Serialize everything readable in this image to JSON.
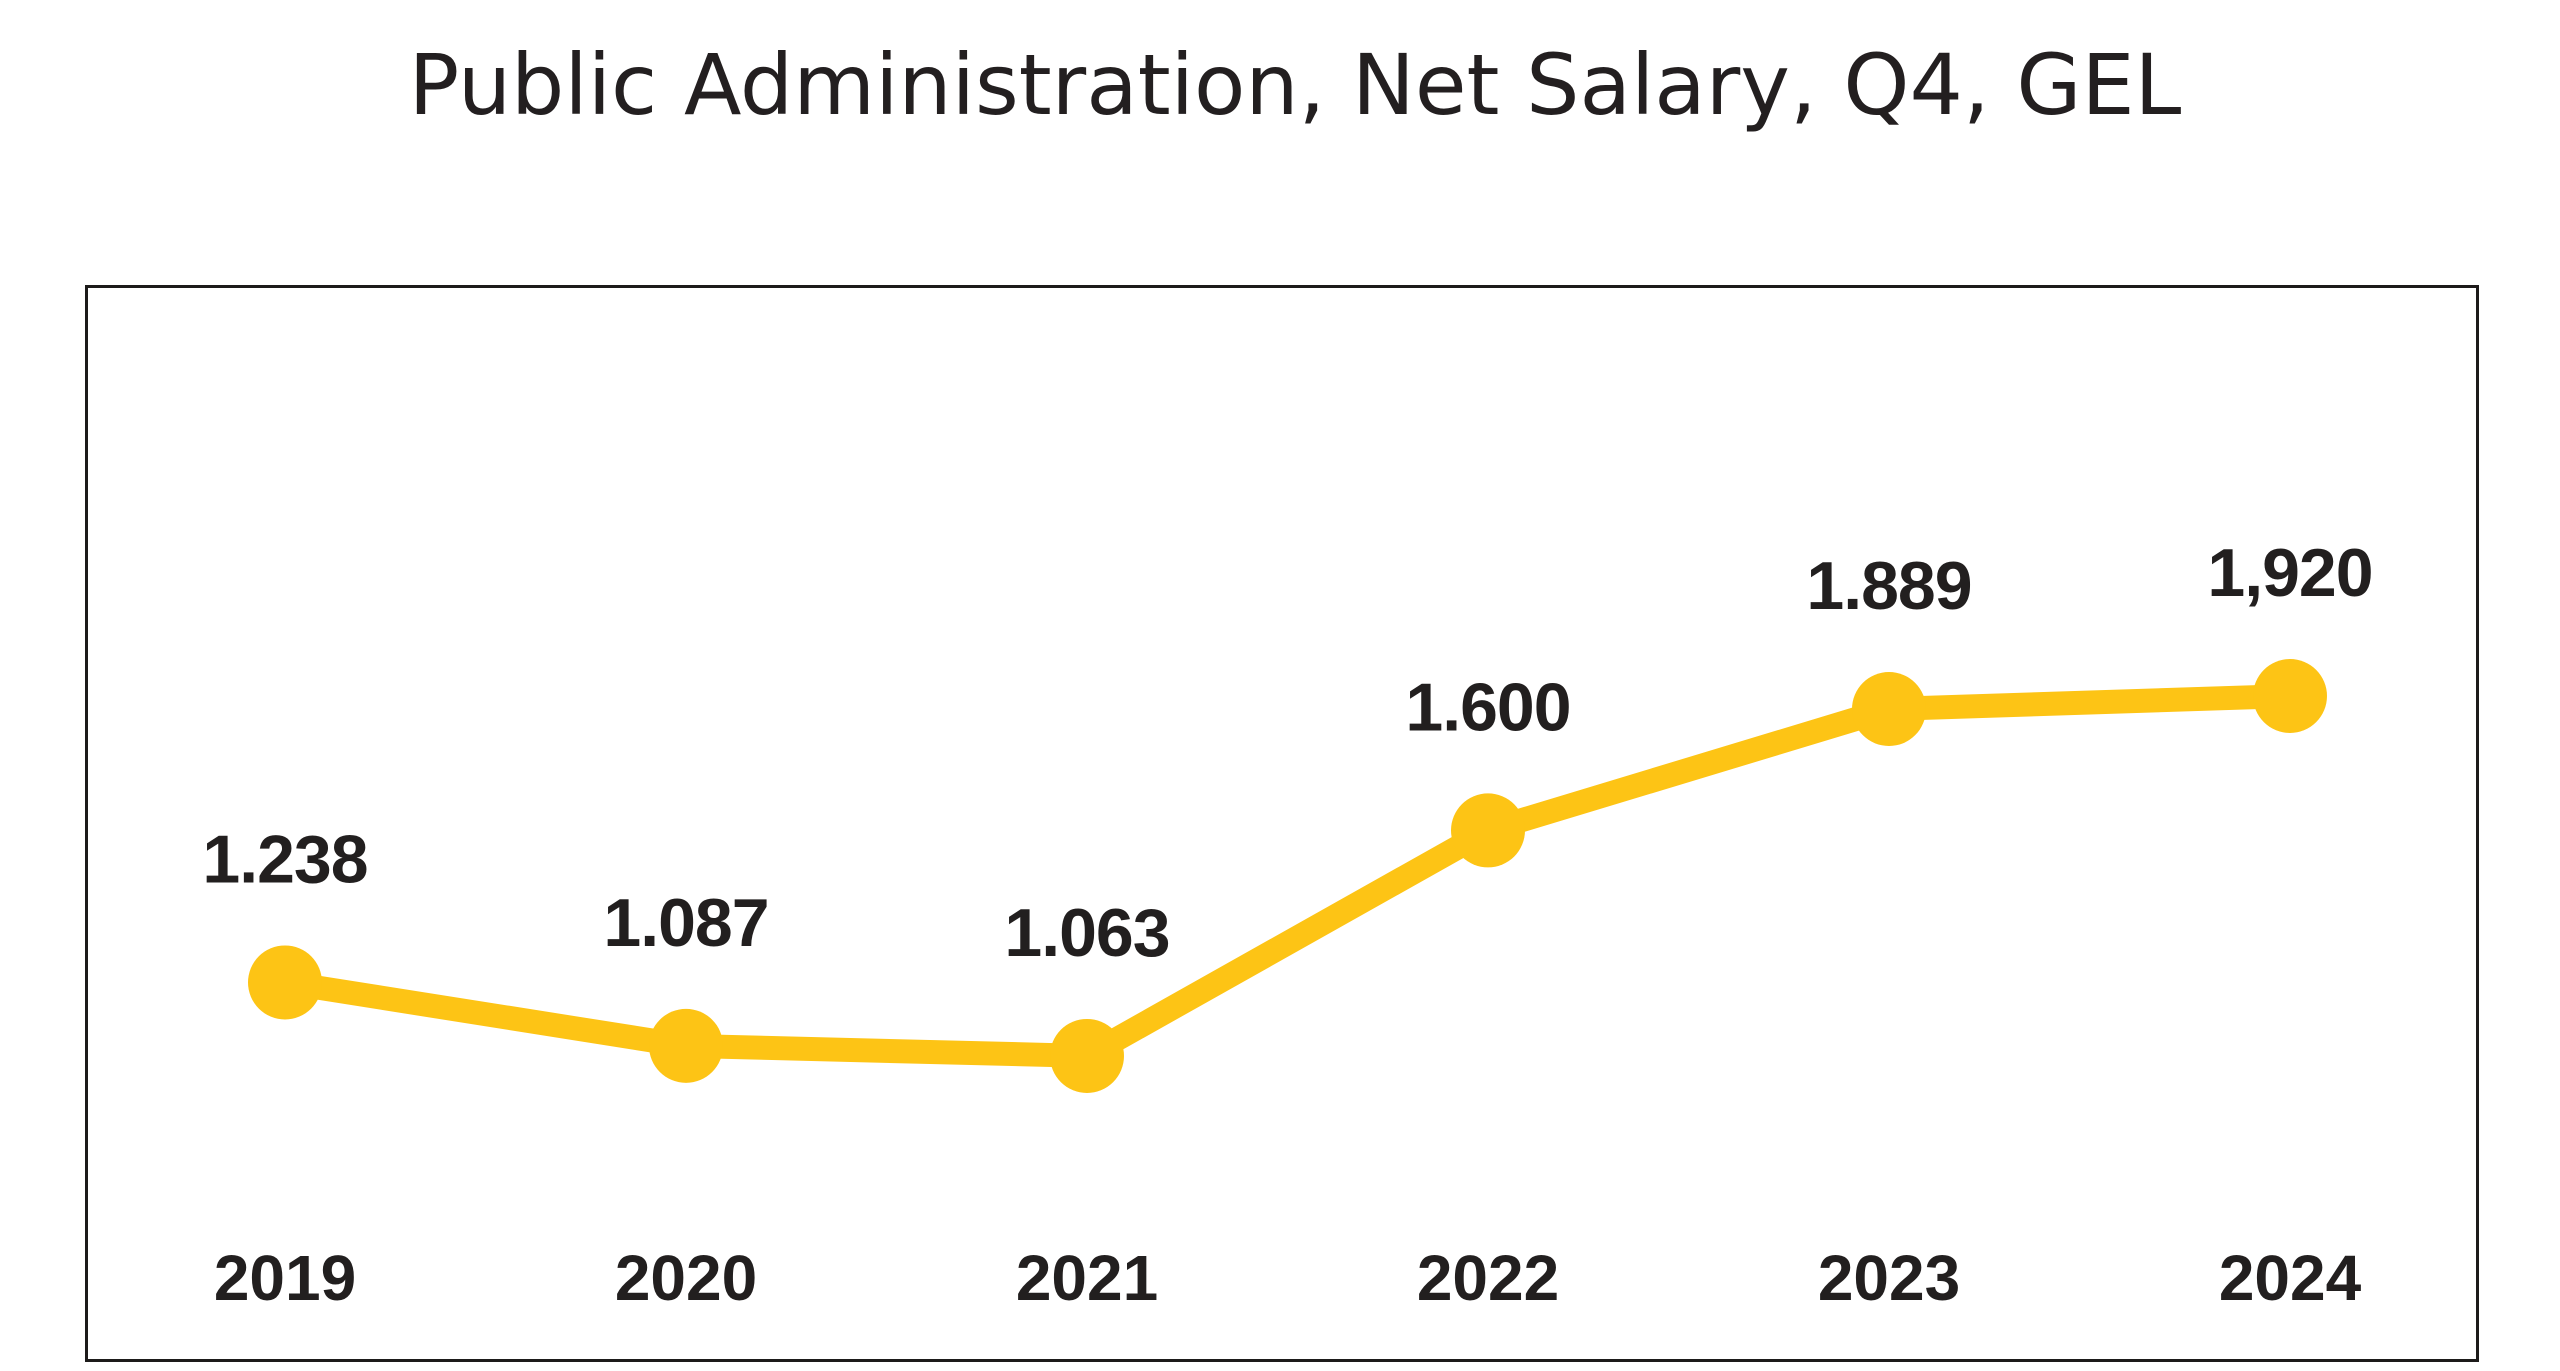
{
  "header": {
    "title": "Public Administration, Net Salary, Q4, GEL"
  },
  "chart_data": {
    "type": "line",
    "title": "Public Administration, Net Salary, Q4, GEL",
    "categories": [
      "2019",
      "2020",
      "2021",
      "2022",
      "2023",
      "2024"
    ],
    "values": [
      1238,
      1087,
      1063,
      1600,
      1889,
      1920
    ],
    "point_labels": [
      "1.238",
      "1.087",
      "1.063",
      "1.600",
      "1.889",
      "1,920"
    ],
    "xlabel": "",
    "ylabel": "",
    "legend": false,
    "grid": false,
    "axes_visible": false,
    "data_label_position": "above-points",
    "marker_style": "filled-circle",
    "colors": {
      "line": "#FDC415",
      "marker": "#FDC415",
      "label_text": "#221F1F",
      "title_text": "#231F20",
      "frame_border": "#1D1B1A",
      "background": "#FFFFFF"
    }
  }
}
